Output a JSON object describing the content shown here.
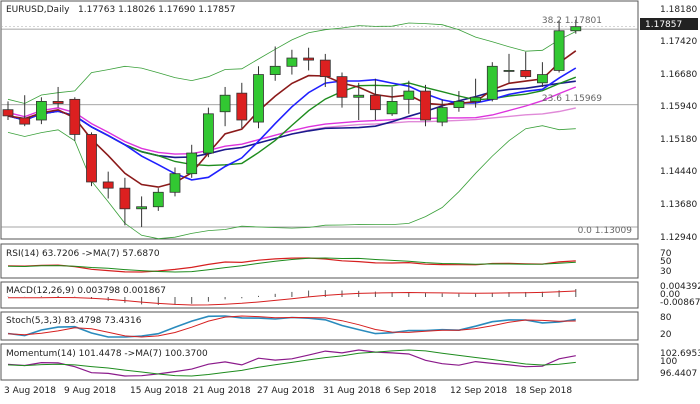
{
  "header": {
    "symbol": "EURUSD,Daily",
    "ohlc": "1.17763 1.18026 1.17690 1.17857"
  },
  "price_badge": "1.17857",
  "fib_labels": [
    "38.2 1.17801",
    "23.6 1.15969",
    "0.0 1.13009"
  ],
  "y_ticks": [
    "1.18180",
    "1.17420",
    "1.16680",
    "1.15940",
    "1.15180",
    "1.14440",
    "1.13680",
    "1.12940"
  ],
  "x_ticks": [
    "3 Aug 2018",
    "9 Aug 2018",
    "15 Aug 2018",
    "21 Aug 2018",
    "27 Aug 2018",
    "31 Aug 2018",
    "6 Sep 2018",
    "12 Sep 2018",
    "18 Sep 2018"
  ],
  "panels": {
    "rsi": {
      "label": "RSI(14) 63.7206  ->MA(7) 57.6870",
      "ticks": [
        "70",
        "50",
        "30"
      ]
    },
    "macd": {
      "label": "MACD(12,26,9) 0.003798 0.001867",
      "ticks": [
        "0.004392",
        "0.00",
        "-0.008671"
      ]
    },
    "stoch": {
      "label": "Stoch(5,3,3) 83.4798 73.4316",
      "ticks": [
        "80",
        "20"
      ]
    },
    "momentum": {
      "label": "Momentum(14) 101.4478  ->MA(7) 100.3700",
      "ticks": [
        "102.6953",
        "100",
        "96.4407"
      ]
    }
  },
  "colors": {
    "bull": "#32c832",
    "bear": "#dc2020",
    "ma_navy": "#1a1a8c",
    "ma_blue": "#2020ff",
    "ma_brown": "#8b1a1a",
    "ma_green": "#1e8c1e",
    "ma_magenta": "#dd33dd",
    "ma_pink": "#e08ad8",
    "bollinger": "#3aa03a"
  },
  "chart_data": {
    "type": "candlestick",
    "x": [
      "3 Aug 2018",
      "6 Aug 2018",
      "7 Aug 2018",
      "8 Aug 2018",
      "9 Aug 2018",
      "10 Aug 2018",
      "13 Aug 2018",
      "14 Aug 2018",
      "15 Aug 2018",
      "16 Aug 2018",
      "17 Aug 2018",
      "20 Aug 2018",
      "21 Aug 2018",
      "22 Aug 2018",
      "23 Aug 2018",
      "24 Aug 2018",
      "27 Aug 2018",
      "28 Aug 2018",
      "29 Aug 2018",
      "30 Aug 2018",
      "31 Aug 2018",
      "3 Sep 2018",
      "4 Sep 2018",
      "5 Sep 2018",
      "6 Sep 2018",
      "7 Sep 2018",
      "10 Sep 2018",
      "11 Sep 2018",
      "12 Sep 2018",
      "13 Sep 2018",
      "14 Sep 2018",
      "17 Sep 2018",
      "18 Sep 2018",
      "19 Sep 2018",
      "20 Sep 2018"
    ],
    "open": [
      1.1585,
      1.1565,
      1.156,
      1.1605,
      1.161,
      1.1525,
      1.141,
      1.1395,
      1.1345,
      1.135,
      1.1385,
      1.143,
      1.148,
      1.158,
      1.1625,
      1.1555,
      1.167,
      1.169,
      1.171,
      1.1705,
      1.1665,
      1.1615,
      1.162,
      1.1575,
      1.161,
      1.163,
      1.1555,
      1.159,
      1.1605,
      1.161,
      1.168,
      1.168,
      1.165,
      1.168,
      1.1776
    ],
    "high": [
      1.1605,
      1.162,
      1.1615,
      1.164,
      1.1615,
      1.153,
      1.1435,
      1.142,
      1.1375,
      1.1395,
      1.1445,
      1.15,
      1.159,
      1.164,
      1.165,
      1.169,
      1.1738,
      1.173,
      1.1735,
      1.172,
      1.1675,
      1.165,
      1.166,
      1.164,
      1.1655,
      1.1645,
      1.161,
      1.163,
      1.166,
      1.17,
      1.172,
      1.1725,
      1.17,
      1.18,
      1.1803
    ],
    "low": [
      1.156,
      1.1545,
      1.155,
      1.159,
      1.151,
      1.14,
      1.137,
      1.1305,
      1.1301,
      1.134,
      1.1375,
      1.142,
      1.147,
      1.1545,
      1.154,
      1.154,
      1.1655,
      1.167,
      1.168,
      1.164,
      1.159,
      1.156,
      1.156,
      1.157,
      1.1575,
      1.1545,
      1.1545,
      1.158,
      1.159,
      1.1605,
      1.165,
      1.166,
      1.164,
      1.1675,
      1.1769
    ],
    "close": [
      1.157,
      1.155,
      1.1605,
      1.16,
      1.1525,
      1.141,
      1.1395,
      1.1345,
      1.135,
      1.1385,
      1.143,
      1.148,
      1.1575,
      1.162,
      1.156,
      1.167,
      1.169,
      1.171,
      1.1705,
      1.1665,
      1.1615,
      1.162,
      1.1585,
      1.1605,
      1.163,
      1.156,
      1.159,
      1.1605,
      1.1615,
      1.169,
      1.168,
      1.1665,
      1.167,
      1.1776,
      1.1786
    ],
    "fibonacci": [
      {
        "level": "38.2",
        "value": 1.17801
      },
      {
        "level": "23.6",
        "value": 1.15969
      },
      {
        "level": "0.0",
        "value": 1.13009
      }
    ],
    "ylim": [
      1.1284,
      1.1836
    ],
    "indicators": {
      "rsi_14": 63.7206,
      "rsi_ma_7": 57.687,
      "macd": 0.003798,
      "macd_signal": 0.001867,
      "stoch_k": 83.4798,
      "stoch_d": 73.4316,
      "momentum_14": 101.4478,
      "momentum_ma_7": 100.37
    },
    "grid": false,
    "legend": "none"
  }
}
